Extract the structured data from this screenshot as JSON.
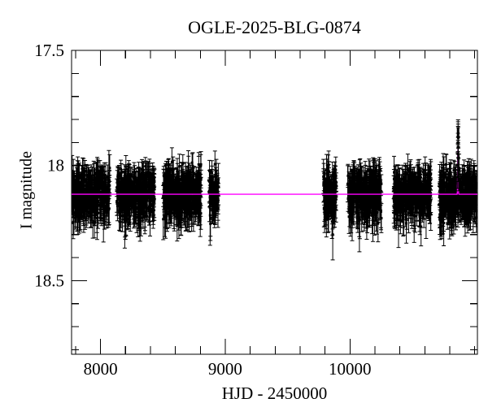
{
  "chart_data": {
    "type": "scatter",
    "title": "OGLE-2025-BLG-0874",
    "xlabel": "HJD - 2450000",
    "ylabel": "I magnitude",
    "xlim": [
      7768,
      11022
    ],
    "ylim": [
      17.5,
      18.82
    ],
    "y_inverted": true,
    "grid": false,
    "legend": "none",
    "point_color": "#000000",
    "model_color": "#ff00ff",
    "frame_color": "#000000",
    "x_major_ticks": [
      {
        "value": 8000,
        "label": "8000"
      },
      {
        "value": 9000,
        "label": "9000"
      },
      {
        "value": 10000,
        "label": "10000"
      }
    ],
    "x_minor_step": 200,
    "y_major_ticks": [
      {
        "value": 17.5,
        "label": "17.5"
      },
      {
        "value": 18.0,
        "label": "18"
      },
      {
        "value": 18.5,
        "label": "18.5"
      }
    ],
    "y_minor_step": 0.1,
    "baseline_mag": 18.125,
    "scatter_sigma": 0.05,
    "typical_error": 0.055,
    "seasons": [
      {
        "id": "s1",
        "start": 7772,
        "end": 8075,
        "n": 340
      },
      {
        "id": "s2",
        "start": 8130,
        "end": 8433,
        "n": 360
      },
      {
        "id": "s3",
        "start": 8503,
        "end": 8807,
        "n": 370
      },
      {
        "id": "s4",
        "start": 8872,
        "end": 8948,
        "n": 90
      },
      {
        "id": "s5",
        "start": 9787,
        "end": 9890,
        "n": 130
      },
      {
        "id": "s6",
        "start": 9982,
        "end": 10252,
        "n": 320
      },
      {
        "id": "s7",
        "start": 10350,
        "end": 10652,
        "n": 350
      },
      {
        "id": "s8",
        "start": 10718,
        "end": 11015,
        "n": 370
      }
    ],
    "event_model": {
      "t0": 10866,
      "peak_mag": 17.93,
      "sigma_days": 2.0,
      "baseline_mag": 18.125
    },
    "peak_points": [
      [
        10863.5,
        18.05,
        0.05
      ],
      [
        10864.8,
        18.0,
        0.05
      ],
      [
        10865.6,
        17.95,
        0.045
      ],
      [
        10866.2,
        17.9,
        0.04
      ],
      [
        10866.6,
        17.87,
        0.04
      ],
      [
        10866.9,
        17.85,
        0.04
      ],
      [
        10867.1,
        17.84,
        0.038
      ],
      [
        10867.4,
        17.86,
        0.04
      ],
      [
        10867.8,
        17.88,
        0.045
      ],
      [
        10868.3,
        17.92,
        0.045
      ],
      [
        10869.2,
        17.97,
        0.05
      ],
      [
        10870.3,
        18.02,
        0.05
      ],
      [
        10871.8,
        18.06,
        0.05
      ]
    ],
    "extra_points": [
      [
        9862,
        18.3,
        0.11
      ]
    ],
    "rng_seed": 20250874
  }
}
